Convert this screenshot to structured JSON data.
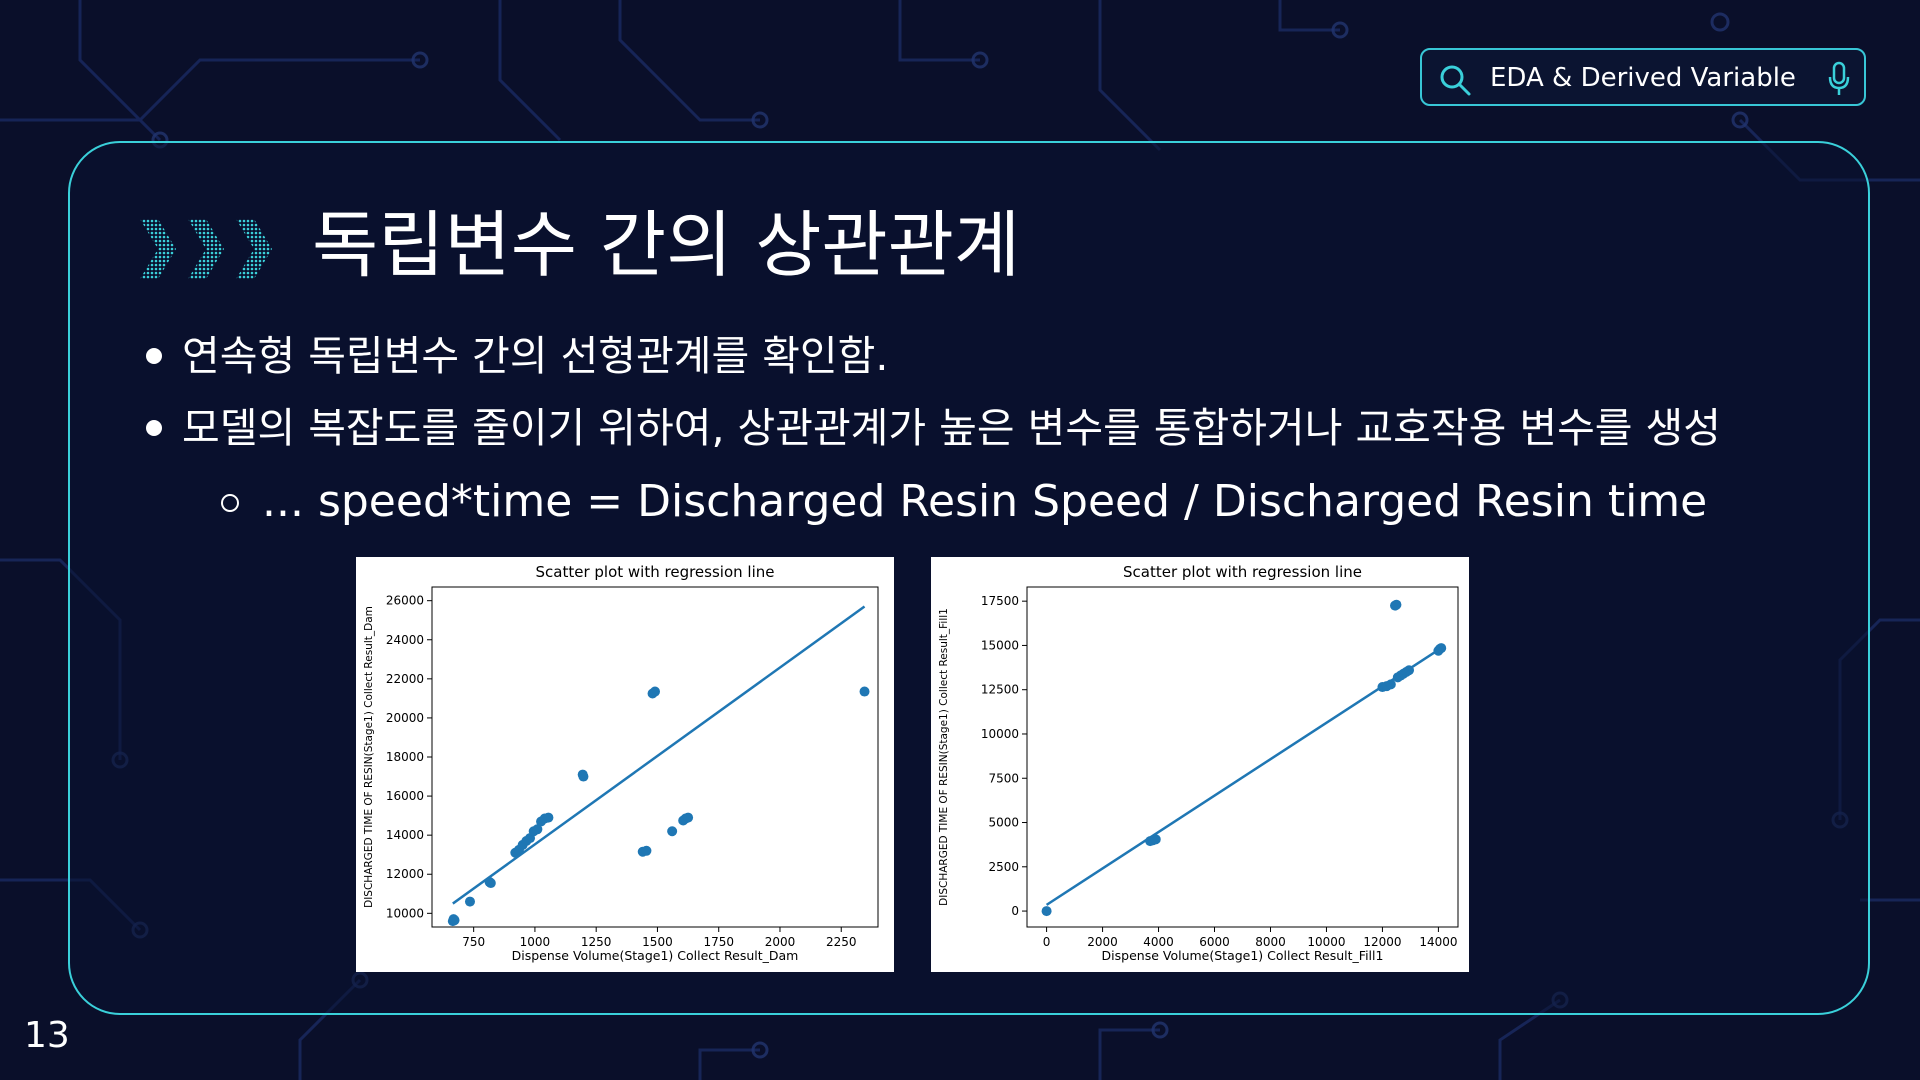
{
  "header": {
    "search_text": "EDA & Derived Variable"
  },
  "slide": {
    "title": "독립변수 간의 상관관계",
    "bullets": [
      "연속형 독립변수 간의 선형관계를 확인함.",
      "모델의 복잡도를 줄이기 위하여, 상관관계가 높은 변수를 통합하거나 교호작용 변수를 생성"
    ],
    "sub_bullet": "... speed*time =  Discharged Resin Speed / Discharged Resin time",
    "page_number": "13"
  },
  "colors": {
    "background": "#0a0f2a",
    "accent": "#3ad0da",
    "series": "#1f77b4"
  },
  "chart_data": [
    {
      "type": "scatter",
      "title": "Scatter plot with regression line",
      "xlabel": "Dispense Volume(Stage1) Collect Result_Dam",
      "ylabel": "DISCHARGED TIME OF RESIN(Stage1) Collect Result_Dam",
      "xlim": [
        580,
        2400
      ],
      "ylim": [
        9300,
        26700
      ],
      "xticks": [
        750,
        1000,
        1250,
        1500,
        1750,
        2000,
        2250
      ],
      "yticks": [
        10000,
        12000,
        14000,
        16000,
        18000,
        20000,
        22000,
        24000,
        26000
      ],
      "points": [
        [
          665,
          9600
        ],
        [
          668,
          9700
        ],
        [
          672,
          9650
        ],
        [
          735,
          10600
        ],
        [
          815,
          11600
        ],
        [
          820,
          11550
        ],
        [
          920,
          13100
        ],
        [
          935,
          13250
        ],
        [
          950,
          13500
        ],
        [
          965,
          13700
        ],
        [
          980,
          13850
        ],
        [
          995,
          14200
        ],
        [
          1010,
          14300
        ],
        [
          1025,
          14700
        ],
        [
          1040,
          14850
        ],
        [
          1055,
          14900
        ],
        [
          1195,
          17100
        ],
        [
          1198,
          17000
        ],
        [
          1440,
          13150
        ],
        [
          1455,
          13200
        ],
        [
          1480,
          21250
        ],
        [
          1490,
          21350
        ],
        [
          1560,
          14200
        ],
        [
          1605,
          14750
        ],
        [
          1615,
          14850
        ],
        [
          1625,
          14900
        ],
        [
          2345,
          21350
        ]
      ],
      "regression_line": [
        [
          665,
          10500
        ],
        [
          2345,
          25700
        ]
      ]
    },
    {
      "type": "scatter",
      "title": "Scatter plot with regression line",
      "xlabel": "Dispense Volume(Stage1) Collect Result_Fill1",
      "ylabel": "DISCHARGED TIME OF RESIN(Stage1) Collect Result_Fill1",
      "xlim": [
        -700,
        14700
      ],
      "ylim": [
        -900,
        18300
      ],
      "xticks": [
        0,
        2000,
        4000,
        6000,
        8000,
        10000,
        12000,
        14000
      ],
      "yticks": [
        0,
        2500,
        5000,
        7500,
        10000,
        12500,
        15000,
        17500
      ],
      "points": [
        [
          0,
          0
        ],
        [
          3700,
          3950
        ],
        [
          3800,
          4000
        ],
        [
          3900,
          4050
        ],
        [
          12000,
          12650
        ],
        [
          12150,
          12700
        ],
        [
          12300,
          12800
        ],
        [
          12450,
          17250
        ],
        [
          12500,
          17300
        ],
        [
          12550,
          13200
        ],
        [
          12650,
          13300
        ],
        [
          12750,
          13400
        ],
        [
          12850,
          13500
        ],
        [
          12950,
          13600
        ],
        [
          14000,
          14700
        ],
        [
          14050,
          14800
        ],
        [
          14100,
          14850
        ]
      ],
      "regression_line": [
        [
          0,
          350
        ],
        [
          14100,
          14850
        ]
      ]
    }
  ]
}
